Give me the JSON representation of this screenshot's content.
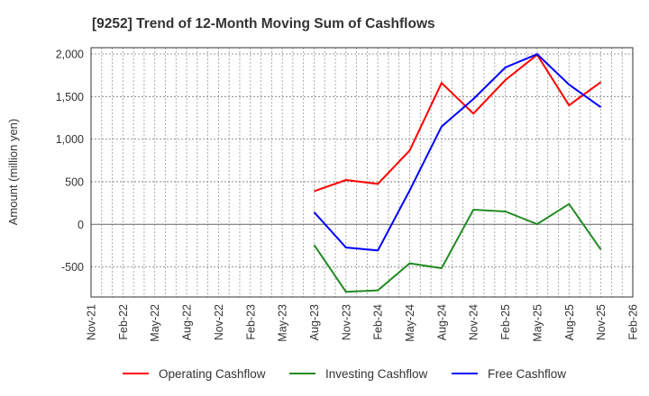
{
  "chart_data": {
    "type": "line",
    "title": "[9252]  Trend of 12-Month Moving Sum of Cashflows",
    "xlabel": "",
    "ylabel": "Amount (million yen)",
    "ylim": [
      -853,
      2074
    ],
    "yticks": [
      2000,
      1500,
      1000,
      500,
      0,
      -500
    ],
    "ytick_labels": [
      "2,000",
      "1,500",
      "1,000",
      "500",
      "0",
      "-500"
    ],
    "xtick_labels": [
      "Nov-21",
      "Feb-22",
      "May-22",
      "Aug-22",
      "Nov-22",
      "Feb-23",
      "May-23",
      "Aug-23",
      "Nov-23",
      "Feb-24",
      "May-24",
      "Aug-24",
      "Nov-24",
      "Feb-25",
      "May-25",
      "Aug-25",
      "Nov-25",
      "Feb-26"
    ],
    "grid": true,
    "legend_position": "bottom",
    "x": [
      "Aug-23",
      "Nov-23",
      "Feb-24",
      "May-24",
      "Aug-24",
      "Nov-24",
      "Feb-25",
      "May-25",
      "Aug-25",
      "Nov-25"
    ],
    "series": [
      {
        "name": "Operating Cashflow",
        "color": "#ff0000",
        "values": [
          390,
          521,
          475,
          867,
          1660,
          1300,
          1694,
          1990,
          1398,
          1670
        ]
      },
      {
        "name": "Investing Cashflow",
        "color": "#228b22",
        "values": [
          -242,
          -792,
          -775,
          -458,
          -515,
          172,
          151,
          3,
          239,
          -296
        ]
      },
      {
        "name": "Free Cashflow",
        "color": "#0000ff",
        "values": [
          142,
          -272,
          -307,
          398,
          1148,
          1472,
          1842,
          1998,
          1641,
          1374
        ]
      }
    ]
  }
}
